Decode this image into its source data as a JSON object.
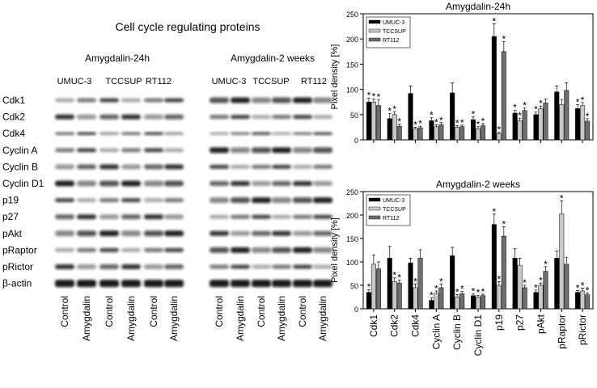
{
  "blot": {
    "title": "Cell cycle regulating proteins",
    "proteins": [
      "Cdk1",
      "Cdk2",
      "Cdk4",
      "Cyclin A",
      "Cyclin B",
      "Cyclin D1",
      "p19",
      "p27",
      "pAkt",
      "pRaptor",
      "pRictor",
      "β-actin"
    ],
    "panels": [
      {
        "title": "Amygdalin-24h",
        "cell_lines": [
          "UMUC-3",
          "TCCSUP",
          "RT112"
        ],
        "lanes": [
          "Control",
          "Amygdalin",
          "Control",
          "Amygdalin",
          "Control",
          "Amygdalin"
        ]
      },
      {
        "title": "Amygdalin-2 weeks",
        "cell_lines": [
          "UMUC-3",
          "TCCSUP",
          "RT112"
        ],
        "lanes": [
          "Control",
          "Amygdalin",
          "Control",
          "Amygdalin",
          "Control",
          "Amygdalin"
        ]
      }
    ]
  },
  "chart_data": [
    {
      "type": "bar",
      "title": "Amygdalin-24h",
      "y_label": "Pixel density [%]",
      "ylim": [
        0,
        250
      ],
      "yticks": [
        0,
        50,
        100,
        150,
        200,
        250
      ],
      "legend": "upper-left",
      "significance_mark": "*",
      "series": [
        {
          "name": "UMUC-3",
          "color": "#000000",
          "values": [
            75,
            42,
            92,
            38,
            93,
            40,
            205,
            53,
            50,
            95,
            62
          ],
          "errors": [
            8,
            10,
            15,
            6,
            20,
            6,
            25,
            6,
            5,
            12,
            8
          ],
          "significant": [
            true,
            true,
            false,
            true,
            false,
            true,
            true,
            true,
            true,
            false,
            true
          ]
        },
        {
          "name": "TCCSUP",
          "color": "#c8c8c8",
          "values": [
            75,
            50,
            22,
            26,
            25,
            22,
            12,
            38,
            62,
            70,
            68
          ],
          "errors": [
            6,
            6,
            3,
            4,
            3,
            4,
            3,
            5,
            5,
            10,
            6
          ],
          "significant": [
            true,
            true,
            true,
            true,
            true,
            true,
            true,
            true,
            true,
            false,
            true
          ]
        },
        {
          "name": "RT112",
          "color": "#6e6e6e",
          "values": [
            68,
            27,
            24,
            30,
            26,
            28,
            175,
            58,
            73,
            98,
            37
          ],
          "errors": [
            12,
            4,
            3,
            4,
            3,
            4,
            20,
            5,
            8,
            15,
            5
          ],
          "significant": [
            true,
            true,
            true,
            true,
            true,
            true,
            true,
            true,
            false,
            false,
            true
          ]
        }
      ]
    },
    {
      "type": "bar",
      "title": "Amygdalin-2 weeks",
      "y_label": "Pixel density [%]",
      "ylim": [
        0,
        250
      ],
      "yticks": [
        0,
        50,
        100,
        150,
        200,
        250
      ],
      "legend": "upper-left",
      "significance_mark": "*",
      "categories": [
        "Cdk1",
        "Cdk2",
        "Cdk4",
        "Cyclin A",
        "Cyclin B",
        "Cyclin D1",
        "p19",
        "p27",
        "pAkt",
        "pRaptor",
        "pRictor"
      ],
      "series": [
        {
          "name": "UMUC-3",
          "color": "#000000",
          "values": [
            35,
            108,
            98,
            18,
            113,
            28,
            180,
            108,
            35,
            108,
            35
          ],
          "errors": [
            6,
            25,
            10,
            5,
            18,
            4,
            22,
            20,
            5,
            15,
            4
          ],
          "significant": [
            true,
            false,
            false,
            true,
            false,
            true,
            true,
            false,
            true,
            false,
            true
          ]
        },
        {
          "name": "TCCSUP",
          "color": "#c8c8c8",
          "values": [
            95,
            58,
            45,
            33,
            25,
            25,
            50,
            93,
            50,
            202,
            38
          ],
          "errors": [
            20,
            8,
            8,
            5,
            5,
            4,
            8,
            15,
            5,
            28,
            6
          ],
          "significant": [
            false,
            true,
            true,
            true,
            true,
            true,
            true,
            false,
            true,
            true,
            true
          ]
        },
        {
          "name": "RT112",
          "color": "#6e6e6e",
          "values": [
            85,
            55,
            108,
            45,
            32,
            28,
            155,
            45,
            80,
            95,
            30
          ],
          "errors": [
            15,
            6,
            18,
            8,
            5,
            3,
            20,
            5,
            10,
            15,
            4
          ],
          "significant": [
            false,
            true,
            false,
            true,
            true,
            true,
            true,
            true,
            true,
            false,
            true
          ]
        }
      ]
    }
  ]
}
